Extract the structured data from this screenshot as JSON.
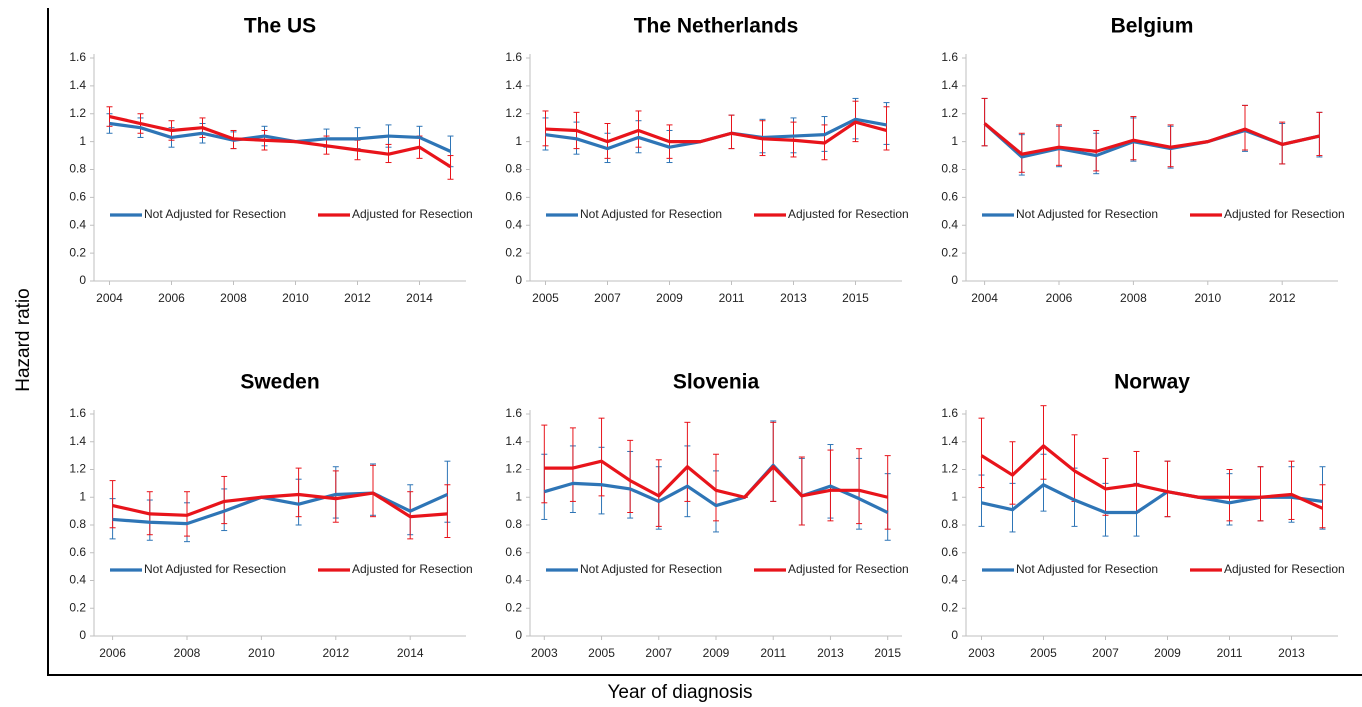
{
  "y_label": "Hazard ratio",
  "x_label": "Year of diagnosis",
  "chart_data": [
    {
      "type": "line",
      "title": "The US",
      "x": [
        2004,
        2005,
        2006,
        2007,
        2008,
        2009,
        2010,
        2011,
        2012,
        2013,
        2014,
        2015
      ],
      "xlim": [
        2003.5,
        2015.5
      ],
      "xticks": [
        2004,
        2006,
        2008,
        2010,
        2012,
        2014
      ],
      "ylim": [
        0,
        1.6
      ],
      "yticks": [
        0,
        0.2,
        0.4,
        0.6,
        0.8,
        1,
        1.2,
        1.4,
        1.6
      ],
      "legend": "lower",
      "series": [
        {
          "name": "Not Adjusted for Resection",
          "color": "#2e75b6",
          "values": [
            1.13,
            1.1,
            1.03,
            1.06,
            1.01,
            1.04,
            1.0,
            1.02,
            1.02,
            1.04,
            1.03,
            0.93
          ],
          "lower": [
            1.06,
            1.03,
            0.96,
            0.99,
            0.95,
            0.97,
            1.0,
            0.96,
            0.95,
            0.96,
            0.95,
            0.82
          ],
          "upper": [
            1.2,
            1.17,
            1.1,
            1.13,
            1.07,
            1.11,
            1.0,
            1.09,
            1.1,
            1.12,
            1.11,
            1.04
          ]
        },
        {
          "name": "Adjusted for Resection",
          "color": "#e8141b",
          "values": [
            1.18,
            1.13,
            1.08,
            1.1,
            1.02,
            1.01,
            1.0,
            0.97,
            0.94,
            0.91,
            0.96,
            0.82
          ],
          "lower": [
            1.11,
            1.06,
            1.01,
            1.03,
            0.95,
            0.94,
            1.0,
            0.91,
            0.87,
            0.85,
            0.88,
            0.73
          ],
          "upper": [
            1.25,
            1.2,
            1.15,
            1.17,
            1.08,
            1.08,
            1.0,
            1.04,
            1.01,
            0.98,
            1.04,
            0.9
          ]
        }
      ]
    },
    {
      "type": "line",
      "title": "The Netherlands",
      "x": [
        2005,
        2006,
        2007,
        2008,
        2009,
        2010,
        2011,
        2012,
        2013,
        2014,
        2015,
        2016
      ],
      "xlim": [
        2004.5,
        2016.5
      ],
      "xticks": [
        2005,
        2007,
        2009,
        2011,
        2013,
        2015
      ],
      "ylim": [
        0,
        1.6
      ],
      "yticks": [
        0,
        0.2,
        0.4,
        0.6,
        0.8,
        1,
        1.2,
        1.4,
        1.6
      ],
      "legend": "lower",
      "series": [
        {
          "name": "Not Adjusted for Resection",
          "color": "#2e75b6",
          "values": [
            1.05,
            1.02,
            0.95,
            1.03,
            0.96,
            1.0,
            1.06,
            1.03,
            1.04,
            1.05,
            1.16,
            1.12
          ],
          "lower": [
            0.94,
            0.91,
            0.85,
            0.92,
            0.85,
            1.0,
            0.95,
            0.92,
            0.92,
            0.93,
            1.02,
            0.98
          ],
          "upper": [
            1.17,
            1.14,
            1.06,
            1.15,
            1.08,
            1.0,
            1.19,
            1.16,
            1.17,
            1.18,
            1.31,
            1.28
          ]
        },
        {
          "name": "Adjusted for Resection",
          "color": "#e8141b",
          "values": [
            1.09,
            1.08,
            1.0,
            1.08,
            1.0,
            1.0,
            1.06,
            1.02,
            1.01,
            0.99,
            1.14,
            1.08
          ],
          "lower": [
            0.97,
            0.95,
            0.88,
            0.96,
            0.88,
            1.0,
            0.95,
            0.9,
            0.89,
            0.87,
            1.0,
            0.94
          ],
          "upper": [
            1.22,
            1.21,
            1.13,
            1.22,
            1.12,
            1.0,
            1.19,
            1.15,
            1.14,
            1.12,
            1.29,
            1.25
          ]
        }
      ]
    },
    {
      "type": "line",
      "title": "Belgium",
      "x": [
        2004,
        2005,
        2006,
        2007,
        2008,
        2009,
        2010,
        2011,
        2012,
        2013
      ],
      "xlim": [
        2003.5,
        2013.5
      ],
      "xticks": [
        2004,
        2006,
        2008,
        2010,
        2012
      ],
      "ylim": [
        0,
        1.6
      ],
      "yticks": [
        0,
        0.2,
        0.4,
        0.6,
        0.8,
        1,
        1.2,
        1.4,
        1.6
      ],
      "legend": "lower",
      "series": [
        {
          "name": "Not Adjusted for Resection",
          "color": "#2e75b6",
          "values": [
            1.13,
            0.89,
            0.95,
            0.9,
            1.0,
            0.95,
            1.0,
            1.08,
            0.98,
            1.04
          ],
          "lower": [
            0.97,
            0.76,
            0.82,
            0.77,
            0.86,
            0.81,
            1.0,
            0.93,
            0.84,
            0.89
          ],
          "upper": [
            1.31,
            1.05,
            1.11,
            1.06,
            1.17,
            1.11,
            1.0,
            1.26,
            1.13,
            1.21
          ]
        },
        {
          "name": "Adjusted for Resection",
          "color": "#e8141b",
          "values": [
            1.13,
            0.91,
            0.96,
            0.93,
            1.01,
            0.96,
            1.0,
            1.09,
            0.98,
            1.04
          ],
          "lower": [
            0.97,
            0.78,
            0.83,
            0.79,
            0.87,
            0.82,
            1.0,
            0.94,
            0.84,
            0.9
          ],
          "upper": [
            1.31,
            1.06,
            1.12,
            1.08,
            1.18,
            1.12,
            1.0,
            1.26,
            1.14,
            1.21
          ]
        }
      ]
    },
    {
      "type": "line",
      "title": "Sweden",
      "x": [
        2006,
        2007,
        2008,
        2009,
        2010,
        2011,
        2012,
        2013,
        2014,
        2015
      ],
      "xlim": [
        2005.5,
        2015.5
      ],
      "xticks": [
        2006,
        2008,
        2010,
        2012,
        2014
      ],
      "ylim": [
        0,
        1.6
      ],
      "yticks": [
        0,
        0.2,
        0.4,
        0.6,
        0.8,
        1,
        1.2,
        1.4,
        1.6
      ],
      "legend": "lower",
      "series": [
        {
          "name": "Not Adjusted for Resection",
          "color": "#2e75b6",
          "values": [
            0.84,
            0.82,
            0.81,
            0.9,
            1.0,
            0.95,
            1.02,
            1.03,
            0.9,
            1.02
          ],
          "lower": [
            0.7,
            0.69,
            0.68,
            0.76,
            1.0,
            0.8,
            0.85,
            0.87,
            0.73,
            0.82
          ],
          "upper": [
            0.99,
            0.98,
            0.96,
            1.06,
            1.0,
            1.13,
            1.22,
            1.24,
            1.09,
            1.26
          ]
        },
        {
          "name": "Adjusted for Resection",
          "color": "#e8141b",
          "values": [
            0.94,
            0.88,
            0.87,
            0.97,
            1.0,
            1.02,
            0.99,
            1.03,
            0.86,
            0.88
          ],
          "lower": [
            0.78,
            0.73,
            0.72,
            0.81,
            1.0,
            0.86,
            0.82,
            0.86,
            0.7,
            0.71
          ],
          "upper": [
            1.12,
            1.04,
            1.04,
            1.15,
            1.0,
            1.21,
            1.19,
            1.23,
            1.04,
            1.09
          ]
        }
      ]
    },
    {
      "type": "line",
      "title": "Slovenia",
      "x": [
        2003,
        2004,
        2005,
        2006,
        2007,
        2008,
        2009,
        2010,
        2011,
        2012,
        2013,
        2014,
        2015
      ],
      "xlim": [
        2002.5,
        2015.5
      ],
      "xticks": [
        2003,
        2005,
        2007,
        2009,
        2011,
        2013,
        2015
      ],
      "ylim": [
        0,
        1.6
      ],
      "yticks": [
        0,
        0.2,
        0.4,
        0.6,
        0.8,
        1,
        1.2,
        1.4,
        1.6
      ],
      "legend": "lower",
      "series": [
        {
          "name": "Not Adjusted for Resection",
          "color": "#2e75b6",
          "values": [
            1.04,
            1.1,
            1.09,
            1.06,
            0.97,
            1.08,
            0.94,
            1.0,
            1.23,
            1.01,
            1.08,
            0.99,
            0.89
          ],
          "lower": [
            0.84,
            0.89,
            0.88,
            0.85,
            0.77,
            0.86,
            0.75,
            1.0,
            0.97,
            0.8,
            0.85,
            0.77,
            0.69
          ],
          "upper": [
            1.31,
            1.37,
            1.36,
            1.33,
            1.22,
            1.37,
            1.19,
            1.0,
            1.55,
            1.28,
            1.38,
            1.28,
            1.17
          ]
        },
        {
          "name": "Adjusted for Resection",
          "color": "#e8141b",
          "values": [
            1.21,
            1.21,
            1.26,
            1.12,
            1.01,
            1.22,
            1.05,
            1.0,
            1.22,
            1.01,
            1.05,
            1.05,
            1.0
          ],
          "lower": [
            0.96,
            0.97,
            1.01,
            0.89,
            0.79,
            0.97,
            0.83,
            1.0,
            0.97,
            0.8,
            0.83,
            0.81,
            0.77
          ],
          "upper": [
            1.52,
            1.5,
            1.57,
            1.41,
            1.27,
            1.54,
            1.31,
            1.0,
            1.54,
            1.29,
            1.34,
            1.35,
            1.3
          ]
        }
      ]
    },
    {
      "type": "line",
      "title": "Norway",
      "x": [
        2003,
        2004,
        2005,
        2006,
        2007,
        2008,
        2009,
        2010,
        2011,
        2012,
        2013,
        2014
      ],
      "xlim": [
        2002.5,
        2014.5
      ],
      "xticks": [
        2003,
        2005,
        2007,
        2009,
        2011,
        2013
      ],
      "ylim": [
        0,
        1.6
      ],
      "yticks": [
        0,
        0.2,
        0.4,
        0.6,
        0.8,
        1,
        1.2,
        1.4,
        1.6
      ],
      "legend": "lower",
      "series": [
        {
          "name": "Not Adjusted for Resection",
          "color": "#2e75b6",
          "values": [
            0.96,
            0.91,
            1.09,
            0.98,
            0.89,
            0.89,
            1.04,
            1.0,
            0.96,
            1.0,
            1.0,
            0.97
          ],
          "lower": [
            0.79,
            0.75,
            0.9,
            0.79,
            0.72,
            0.72,
            0.86,
            1.0,
            0.8,
            0.83,
            0.82,
            0.77
          ],
          "upper": [
            1.16,
            1.1,
            1.31,
            1.21,
            1.1,
            1.1,
            1.26,
            1.0,
            1.17,
            1.22,
            1.22,
            1.22
          ]
        },
        {
          "name": "Adjusted for Resection",
          "color": "#e8141b",
          "values": [
            1.3,
            1.16,
            1.37,
            1.19,
            1.06,
            1.09,
            1.04,
            1.0,
            1.0,
            1.0,
            1.02,
            0.92
          ],
          "lower": [
            1.07,
            0.95,
            1.13,
            0.97,
            0.87,
            0.89,
            0.86,
            1.0,
            0.83,
            0.83,
            0.84,
            0.78
          ],
          "upper": [
            1.57,
            1.4,
            1.66,
            1.45,
            1.28,
            1.33,
            1.26,
            1.0,
            1.2,
            1.22,
            1.26,
            1.09
          ]
        }
      ]
    }
  ]
}
